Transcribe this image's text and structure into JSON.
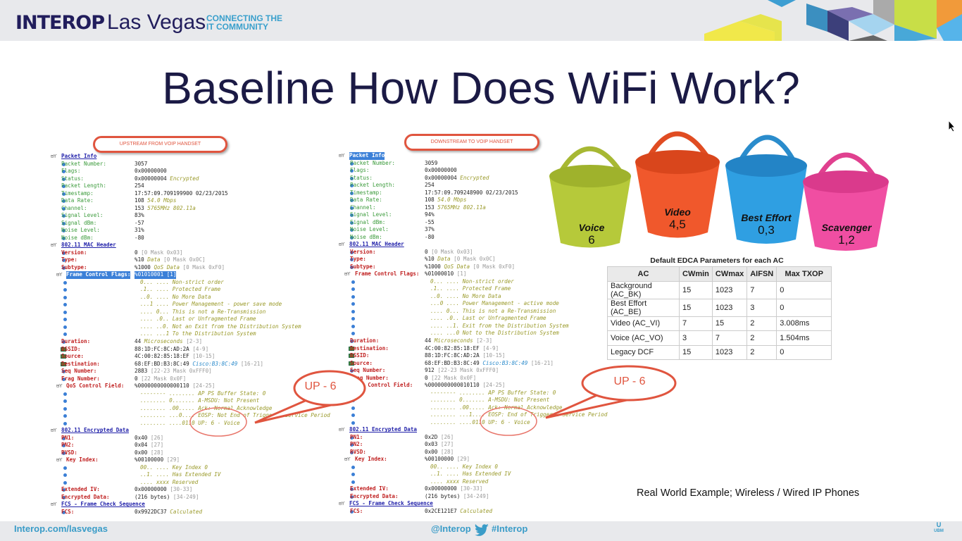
{
  "header": {
    "logo_brand": "INTEROP",
    "logo_city": "Las Vegas",
    "tagline_1": "CONNECTING THE",
    "tagline_2": "IT COMMUNITY"
  },
  "title": "Baseline How Does WiFi Work?",
  "left_panel": {
    "banner": "UPSTREAM FROM VOIP HANDSET",
    "callout": "UP - 6",
    "rows": [
      {
        "t": "sec",
        "l": "Packet Info"
      },
      {
        "t": "f",
        "c": "#3a9a3a",
        "l": "Packet Number:",
        "v": "3057"
      },
      {
        "t": "f",
        "c": "#3a9a3a",
        "l": "Flags:",
        "v": "0x00000000"
      },
      {
        "t": "f",
        "c": "#3a9a3a",
        "l": "Status:",
        "v": "0x00000004",
        "n": "Encrypted"
      },
      {
        "t": "f",
        "c": "#3a9a3a",
        "l": "Packet Length:",
        "v": "254"
      },
      {
        "t": "f",
        "c": "#3a9a3a",
        "l": "Timestamp:",
        "v": "17:57:09.709199900 02/23/2015"
      },
      {
        "t": "f",
        "c": "#3a9a3a",
        "l": "Data Rate:",
        "v": "108",
        "n": "54.0 Mbps"
      },
      {
        "t": "f",
        "c": "#3a9a3a",
        "l": "Channel:",
        "v": "153",
        "n": "5765MHz  802.11a"
      },
      {
        "t": "f",
        "c": "#3a9a3a",
        "l": "Signal Level:",
        "v": "83%"
      },
      {
        "t": "f",
        "c": "#3a9a3a",
        "l": "Signal dBm:",
        "v": "-57"
      },
      {
        "t": "f",
        "c": "#3a9a3a",
        "l": "Noise Level:",
        "v": "31%"
      },
      {
        "t": "f",
        "c": "#3a9a3a",
        "l": "Noise dBm:",
        "v": "-80"
      },
      {
        "t": "sec",
        "l": "802.11 MAC Header"
      },
      {
        "t": "f",
        "c": "#c02020",
        "l": "Version:",
        "v": "0",
        "r": "[0 Mask 0x03]"
      },
      {
        "t": "f",
        "c": "#c02020",
        "l": "Type:",
        "v": "%10",
        "n": "Data",
        "r": "[0 Mask 0x0C]"
      },
      {
        "t": "f",
        "c": "#c02020",
        "l": "Subtype:",
        "v": "%1000",
        "n": "QoS Data",
        "r": "[0 Mask 0xF0]"
      },
      {
        "t": "sub",
        "c": "#c02020",
        "l": "Frame Control Flags:",
        "v": "%01010001",
        "r": "[1]",
        "hl": true
      },
      {
        "t": "bit",
        "n": "0... .... Non-strict order"
      },
      {
        "t": "bit",
        "n": ".1.. .... Protected Frame"
      },
      {
        "t": "bit",
        "n": "..0. .... No More Data"
      },
      {
        "t": "bit",
        "n": "...1 .... Power Management - power save mode"
      },
      {
        "t": "bit",
        "n": ".... 0... This is not a Re-Transmission"
      },
      {
        "t": "bit",
        "n": ".... .0.. Last or Unfragmented Frame"
      },
      {
        "t": "bit",
        "n": ".... ..0. Not an Exit from the Distribution System"
      },
      {
        "t": "bit",
        "n": ".... ...1 To the Distribution System"
      },
      {
        "t": "f",
        "c": "#c02020",
        "l": "Duration:",
        "v": "44",
        "n": "Microseconds",
        "r": "[2-3]"
      },
      {
        "t": "m",
        "c": "#c02020",
        "l": "BSSID:",
        "v": "88:1D:FC:8C:AD:2A",
        "r": "[4-9]"
      },
      {
        "t": "m",
        "c": "#c02020",
        "l": "Source:",
        "v": "4C:00:82:85:18:EF",
        "r": "[10-15]"
      },
      {
        "t": "m",
        "c": "#c02020",
        "l": "Destination:",
        "v": "68:EF:BD:B3:8C:49",
        "k": "Cisco:B3:8C:49",
        "r": "[16-21]"
      },
      {
        "t": "f",
        "c": "#c02020",
        "l": "Seq Number:",
        "v": "2883",
        "r": "[22-23 Mask 0xFFF0]"
      },
      {
        "t": "f",
        "c": "#c02020",
        "l": "Frag Number:",
        "v": "0",
        "r": "[22 Mask 0x0F]"
      },
      {
        "t": "sub",
        "c": "#c02020",
        "l": "QoS Control Field:",
        "v": "%0000000000000110",
        "r": "[24-25]"
      },
      {
        "t": "bit",
        "n": "-------- ........ AP PS Buffer State: 0"
      },
      {
        "t": "bit",
        "n": "........ 0....... A-MSDU: Not Present"
      },
      {
        "t": "bit",
        "n": "........ .00..... Ack: Normal Acknowledge"
      },
      {
        "t": "bit",
        "n": "........ ...0.... EOSP: Not End of Triggered Service Period"
      },
      {
        "t": "bit",
        "n": "........ ....0110 UP: 6 - Voice"
      },
      {
        "t": "sec",
        "l": "802.11 Encrypted Data"
      },
      {
        "t": "f",
        "c": "#c02020",
        "l": "PN1:",
        "v": "0x40",
        "r": "[26]"
      },
      {
        "t": "f",
        "c": "#c02020",
        "l": "PN2:",
        "v": "0x04",
        "r": "[27]"
      },
      {
        "t": "f",
        "c": "#c02020",
        "l": "RVSD:",
        "v": "0x00",
        "r": "[28]"
      },
      {
        "t": "sub",
        "c": "#c02020",
        "l": "Key Index:",
        "v": "%00100000",
        "r": "[29]"
      },
      {
        "t": "bit",
        "n": "00.. .... Key Index 0"
      },
      {
        "t": "bit",
        "n": "..1. .... Has Extended IV"
      },
      {
        "t": "bit",
        "n": ".... xxxx Reserved"
      },
      {
        "t": "f",
        "c": "#c02020",
        "l": "Extended IV:",
        "v": "0x00000000",
        "r": "[30-33]"
      },
      {
        "t": "f",
        "c": "#c02020",
        "l": "Encrypted Data:",
        "v": "(216 bytes)",
        "r": "[34-249]"
      },
      {
        "t": "sec",
        "l": "FCS - Frame Check Sequence"
      },
      {
        "t": "f",
        "c": "#c02020",
        "l": "FCS:",
        "v": "0x9922DC37",
        "n": "Calculated"
      }
    ]
  },
  "right_panel": {
    "banner": "DOWNSTREAM TO VOIP HANDSET",
    "callout": "UP - 6",
    "rows": [
      {
        "t": "sec",
        "l": "Packet Info",
        "hl": true
      },
      {
        "t": "f",
        "c": "#3a9a3a",
        "l": "Packet Number:",
        "v": "3059"
      },
      {
        "t": "f",
        "c": "#3a9a3a",
        "l": "Flags:",
        "v": "0x00000000"
      },
      {
        "t": "f",
        "c": "#3a9a3a",
        "l": "Status:",
        "v": "0x00000004",
        "n": "Encrypted"
      },
      {
        "t": "f",
        "c": "#3a9a3a",
        "l": "Packet Length:",
        "v": "254"
      },
      {
        "t": "f",
        "c": "#3a9a3a",
        "l": "Timestamp:",
        "v": "17:57:09.709248900 02/23/2015"
      },
      {
        "t": "f",
        "c": "#3a9a3a",
        "l": "Data Rate:",
        "v": "108",
        "n": "54.0 Mbps"
      },
      {
        "t": "f",
        "c": "#3a9a3a",
        "l": "Channel:",
        "v": "153",
        "n": "5765MHz  802.11a"
      },
      {
        "t": "f",
        "c": "#3a9a3a",
        "l": "Signal Level:",
        "v": "94%"
      },
      {
        "t": "f",
        "c": "#3a9a3a",
        "l": "Signal dBm:",
        "v": "-55"
      },
      {
        "t": "f",
        "c": "#3a9a3a",
        "l": "Noise Level:",
        "v": "37%"
      },
      {
        "t": "f",
        "c": "#3a9a3a",
        "l": "Noise dBm:",
        "v": "-80"
      },
      {
        "t": "sec",
        "l": "802.11 MAC Header"
      },
      {
        "t": "f",
        "c": "#c02020",
        "l": "Version:",
        "v": "0",
        "r": "[0 Mask 0x03]"
      },
      {
        "t": "f",
        "c": "#c02020",
        "l": "Type:",
        "v": "%10",
        "n": "Data",
        "r": "[0 Mask 0x0C]"
      },
      {
        "t": "f",
        "c": "#c02020",
        "l": "Subtype:",
        "v": "%1000",
        "n": "QoS Data",
        "r": "[0 Mask 0xF0]"
      },
      {
        "t": "sub",
        "c": "#c02020",
        "l": "Frame Control Flags:",
        "v": "%01000010",
        "r": "[1]"
      },
      {
        "t": "bit",
        "n": "0... .... Non-strict order"
      },
      {
        "t": "bit",
        "n": ".1.. .... Protected Frame"
      },
      {
        "t": "bit",
        "n": "..0. .... No More Data"
      },
      {
        "t": "bit",
        "n": "...0 .... Power Management - active mode"
      },
      {
        "t": "bit",
        "n": ".... 0... This is not a Re-Transmission"
      },
      {
        "t": "bit",
        "n": ".... .0.. Last or Unfragmented Frame"
      },
      {
        "t": "bit",
        "n": ".... ..1. Exit from the Distribution System"
      },
      {
        "t": "bit",
        "n": ".... ...0 Not to the Distribution System"
      },
      {
        "t": "f",
        "c": "#c02020",
        "l": "Duration:",
        "v": "44",
        "n": "Microseconds",
        "r": "[2-3]"
      },
      {
        "t": "m",
        "c": "#c02020",
        "l": "Destination:",
        "v": "4C:00:82:85:18:EF",
        "r": "[4-9]"
      },
      {
        "t": "m",
        "c": "#c02020",
        "l": "BSSID:",
        "v": "88:1D:FC:8C:AD:2A",
        "r": "[10-15]"
      },
      {
        "t": "m",
        "c": "#c02020",
        "l": "Source:",
        "v": "68:EF:BD:B3:8C:49",
        "k": "Cisco:B3:8C:49",
        "r": "[16-21]"
      },
      {
        "t": "f",
        "c": "#c02020",
        "l": "Seq Number:",
        "v": "912",
        "r": "[22-23 Mask 0xFFF0]"
      },
      {
        "t": "f",
        "c": "#c02020",
        "l": "Frag Number:",
        "v": "0",
        "r": "[22 Mask 0x0F]"
      },
      {
        "t": "sub",
        "c": "#c02020",
        "l": "QoS Control Field:",
        "v": "%0000000000010110",
        "r": "[24-25]"
      },
      {
        "t": "bit",
        "n": "-------- ........ AP PS Buffer State: 0"
      },
      {
        "t": "bit",
        "n": "........ 0....... A-MSDU: Not Present"
      },
      {
        "t": "bit",
        "n": "........ .00..... Ack: Normal Acknowledge"
      },
      {
        "t": "bit",
        "n": "........ ...1.... EOSP: End of Triggered Service Period"
      },
      {
        "t": "bit",
        "n": "........ ....0110 UP: 6 - Voice"
      },
      {
        "t": "sec",
        "l": "802.11 Encrypted Data"
      },
      {
        "t": "f",
        "c": "#c02020",
        "l": "PN1:",
        "v": "0x2D",
        "r": "[26]"
      },
      {
        "t": "f",
        "c": "#c02020",
        "l": "PN2:",
        "v": "0x03",
        "r": "[27]"
      },
      {
        "t": "f",
        "c": "#c02020",
        "l": "RVSD:",
        "v": "0x00",
        "r": "[28]"
      },
      {
        "t": "sub",
        "c": "#c02020",
        "l": "Key Index:",
        "v": "%00100000",
        "r": "[29]"
      },
      {
        "t": "bit",
        "n": "00.. .... Key Index 0"
      },
      {
        "t": "bit",
        "n": "..1. .... Has Extended IV"
      },
      {
        "t": "bit",
        "n": ".... xxxx Reserved"
      },
      {
        "t": "f",
        "c": "#c02020",
        "l": "Extended IV:",
        "v": "0x00000000",
        "r": "[30-33]"
      },
      {
        "t": "f",
        "c": "#c02020",
        "l": "Encrypted Data:",
        "v": "(216 bytes)",
        "r": "[34-249]"
      },
      {
        "t": "sec",
        "l": "FCS - Frame Check Sequence"
      },
      {
        "t": "f",
        "c": "#c02020",
        "l": "FCS:",
        "v": "0x2CE121E7",
        "n": "Calculated"
      }
    ]
  },
  "buckets": [
    {
      "label": "Voice",
      "value": "6",
      "color": "#b6c93a"
    },
    {
      "label": "Video",
      "value": "4,5",
      "color": "#f0582c"
    },
    {
      "label": "Best Effort",
      "value": "0,3",
      "color": "#2f9fe2"
    },
    {
      "label": "Scavenger",
      "value": "1,2",
      "color": "#f04ea2"
    }
  ],
  "edca": {
    "title": "Default EDCA Parameters for each AC",
    "headers": [
      "AC",
      "CWmin",
      "CWmax",
      "AIFSN",
      "Max TXOP"
    ],
    "rows": [
      [
        "Background (AC_BK)",
        "15",
        "1023",
        "7",
        "0"
      ],
      [
        "Best Effort (AC_BE)",
        "15",
        "1023",
        "3",
        "0"
      ],
      [
        "Video (AC_VI)",
        "7",
        "15",
        "2",
        "3.008ms"
      ],
      [
        "Voice (AC_VO)",
        "3",
        "7",
        "2",
        "1.504ms"
      ],
      [
        "Legacy DCF",
        "15",
        "1023",
        "2",
        "0"
      ]
    ]
  },
  "caption": "Real World Example; Wireless / Wired IP Phones",
  "footer": {
    "url": "Interop.com/lasvegas",
    "handle": "@Interop",
    "hashtag": "#Interop",
    "sponsor": "UBM"
  }
}
